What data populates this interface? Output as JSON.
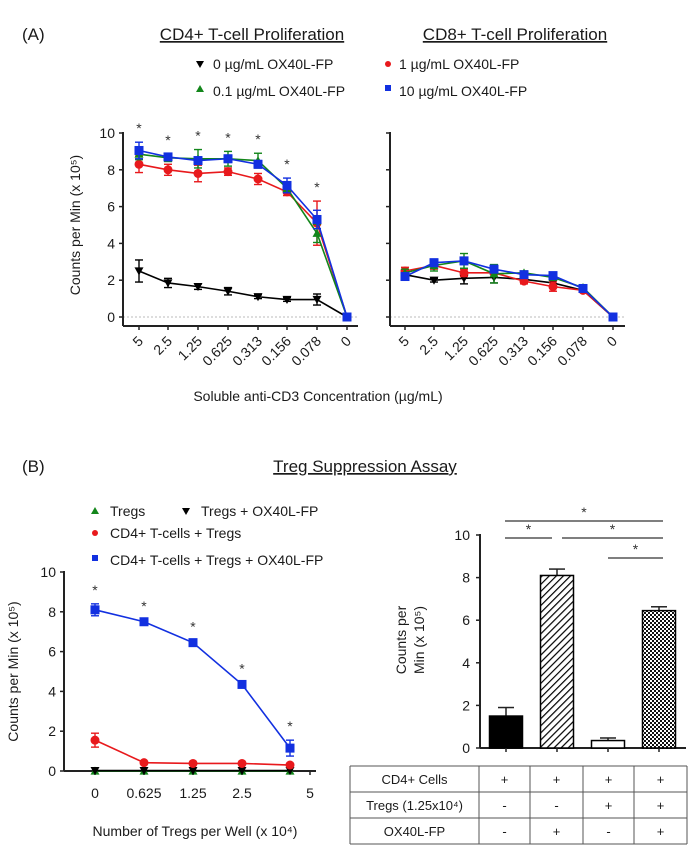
{
  "panel_a": {
    "label": "(A)",
    "shared_xlabel": "Soluble anti-CD3 Concentration (µg/mL)",
    "legend": [
      {
        "name": "0 µg/mL OX40L-FP",
        "color": "#000000",
        "marker": "triangle-down"
      },
      {
        "name": "1 µg/mL OX40L-FP",
        "color": "#e8191c",
        "marker": "circle"
      },
      {
        "name": "0.1 µg/mL OX40L-FP",
        "color": "#13861b",
        "marker": "triangle-up"
      },
      {
        "name": "10 µg/mL OX40L-FP",
        "color": "#1230e0",
        "marker": "square"
      }
    ]
  },
  "panel_b": {
    "label": "(B)",
    "title": "Treg Suppression Assay",
    "legend": [
      {
        "name": "Tregs",
        "color": "#13861b",
        "marker": "triangle-up"
      },
      {
        "name": "Tregs + OX40L-FP",
        "color": "#000000",
        "marker": "triangle-down"
      },
      {
        "name": "CD4+ T-cells + Tregs",
        "color": "#e8191c",
        "marker": "circle"
      },
      {
        "name": "CD4+ T-cells + Tregs + OX40L-FP",
        "color": "#1230e0",
        "marker": "square"
      }
    ],
    "table": {
      "rows": [
        {
          "label": "CD4+ Cells",
          "values": [
            "+",
            "+",
            "+",
            "+"
          ]
        },
        {
          "label": "Tregs (1.25x10⁴)",
          "values": [
            "-",
            "-",
            "+",
            "+"
          ]
        },
        {
          "label": "OX40L-FP",
          "values": [
            "-",
            "+",
            "-",
            "+"
          ]
        }
      ]
    }
  },
  "chart_data": [
    {
      "type": "line",
      "title": "CD4+ T-cell Proliferation",
      "xlabel": "Soluble anti-CD3 Concentration (µg/mL)",
      "ylabel": "Counts per Min (x 10⁵)",
      "categories": [
        "5",
        "2.5",
        "1.25",
        "0.625",
        "0.313",
        "0.156",
        "0.078",
        "0"
      ],
      "ylim": [
        0,
        10
      ],
      "yticks": [
        0,
        2,
        4,
        6,
        8,
        10
      ],
      "significance": [
        "*",
        "*",
        "*",
        "*",
        "*",
        "*",
        "*",
        ""
      ],
      "series": [
        {
          "name": "0 µg/mL OX40L-FP",
          "color": "#000000",
          "marker": "triangle-down",
          "values": [
            2.5,
            1.85,
            1.65,
            1.4,
            1.1,
            0.95,
            0.95,
            0
          ],
          "errors": [
            0.6,
            0.25,
            0.15,
            0.2,
            0.1,
            0.1,
            0.3,
            0
          ]
        },
        {
          "name": "1 µg/mL OX40L-FP",
          "color": "#e8191c",
          "marker": "circle",
          "values": [
            8.3,
            8.0,
            7.8,
            7.9,
            7.5,
            6.8,
            5.1,
            0
          ],
          "errors": [
            0.45,
            0.3,
            0.45,
            0.2,
            0.3,
            0.2,
            1.2,
            0
          ]
        },
        {
          "name": "0.1 µg/mL OX40L-FP",
          "color": "#13861b",
          "marker": "triangle-up",
          "values": [
            8.85,
            8.65,
            8.6,
            8.6,
            8.5,
            7.0,
            4.55,
            0
          ],
          "errors": [
            0.3,
            0.2,
            0.5,
            0.4,
            0.4,
            0.2,
            0.5,
            0
          ]
        },
        {
          "name": "10 µg/mL OX40L-FP",
          "color": "#1230e0",
          "marker": "square",
          "values": [
            9.05,
            8.7,
            8.5,
            8.6,
            8.3,
            7.15,
            5.3,
            0
          ],
          "errors": [
            0.45,
            0.15,
            0.2,
            0.2,
            0.2,
            0.4,
            0.5,
            0
          ]
        }
      ]
    },
    {
      "type": "line",
      "title": "CD8+ T-cell Proliferation",
      "xlabel": "Soluble anti-CD3 Concentration (µg/mL)",
      "ylabel": "",
      "categories": [
        "5",
        "2.5",
        "1.25",
        "0.625",
        "0.313",
        "0.156",
        "0.078",
        "0"
      ],
      "ylim": [
        0,
        10
      ],
      "yticks": [
        0,
        2,
        4,
        6,
        8,
        10
      ],
      "series": [
        {
          "name": "0 µg/mL OX40L-FP",
          "color": "#000000",
          "marker": "triangle-down",
          "values": [
            2.3,
            2.0,
            2.1,
            2.15,
            2.05,
            1.85,
            1.45,
            0
          ],
          "errors": [
            0.1,
            0.1,
            0.3,
            0.3,
            0.1,
            0.2,
            0.1,
            0
          ]
        },
        {
          "name": "1 µg/mL OX40L-FP",
          "color": "#e8191c",
          "marker": "circle",
          "values": [
            2.5,
            2.8,
            2.4,
            2.4,
            1.95,
            1.65,
            1.45,
            0
          ],
          "errors": [
            0.2,
            0.2,
            0.2,
            0.1,
            0.15,
            0.25,
            0.1,
            0
          ]
        },
        {
          "name": "0.1 µg/mL OX40L-FP",
          "color": "#13861b",
          "marker": "triangle-up",
          "values": [
            2.4,
            2.8,
            3.05,
            2.35,
            2.4,
            2.15,
            1.6,
            0
          ],
          "errors": [
            0.2,
            0.3,
            0.4,
            0.5,
            0.1,
            0.1,
            0.1,
            0
          ]
        },
        {
          "name": "10 µg/mL OX40L-FP",
          "color": "#1230e0",
          "marker": "square",
          "values": [
            2.2,
            2.95,
            3.05,
            2.6,
            2.3,
            2.25,
            1.55,
            0
          ],
          "errors": [
            0.1,
            0.2,
            0.2,
            0.2,
            0.1,
            0.1,
            0.1,
            0
          ]
        }
      ]
    },
    {
      "type": "line",
      "title": "Treg Suppression Assay",
      "xlabel": "Number of Tregs per Well (x 10⁴)",
      "ylabel": "Counts per Min (x 10⁵)",
      "categories": [
        "0",
        "0.625",
        "1.25",
        "2.5",
        "5"
      ],
      "ylim": [
        0,
        10
      ],
      "yticks": [
        0,
        2,
        4,
        6,
        8,
        10
      ],
      "significance": [
        "*",
        "*",
        "*",
        "*",
        "*"
      ],
      "series": [
        {
          "name": "Tregs",
          "color": "#13861b",
          "marker": "triangle-up",
          "values": [
            0,
            0,
            0,
            0,
            0
          ],
          "errors": [
            0,
            0,
            0,
            0,
            0
          ]
        },
        {
          "name": "Tregs + OX40L-FP",
          "color": "#000000",
          "marker": "triangle-down",
          "values": [
            0.02,
            0.02,
            0.02,
            0.02,
            0.02
          ],
          "errors": [
            0,
            0,
            0,
            0,
            0
          ]
        },
        {
          "name": "CD4+ T-cells + Tregs",
          "color": "#e8191c",
          "marker": "circle",
          "values": [
            1.55,
            0.42,
            0.38,
            0.38,
            0.3
          ],
          "errors": [
            0.35,
            0.05,
            0.05,
            0.05,
            0.05
          ]
        },
        {
          "name": "CD4+ T-cells + Tregs + OX40L-FP",
          "color": "#1230e0",
          "marker": "square",
          "values": [
            8.1,
            7.5,
            6.45,
            4.35,
            1.15
          ],
          "errors": [
            0.3,
            0.1,
            0.1,
            0.1,
            0.4
          ]
        }
      ]
    },
    {
      "type": "bar",
      "title": "",
      "xlabel": "",
      "ylabel": "Counts per Min (x 10⁵)",
      "categories": [
        "CD4+",
        "CD4+ + OX40L-FP",
        "CD4+ + Tregs",
        "CD4+ + Tregs + OX40L-FP"
      ],
      "values": [
        1.5,
        8.1,
        0.35,
        6.45
      ],
      "errors": [
        0.4,
        0.3,
        0.12,
        0.18
      ],
      "fills": [
        "solid-black",
        "diagonal-hatch",
        "white",
        "checker"
      ],
      "ylim": [
        0,
        10
      ],
      "yticks": [
        0,
        2,
        4,
        6,
        8,
        10
      ],
      "significance_brackets": [
        {
          "from": 0,
          "to": 3,
          "label": "*"
        },
        {
          "from": 0,
          "to": 1,
          "label": "*"
        },
        {
          "from": 1,
          "to": 3,
          "label": "*"
        },
        {
          "from": 2,
          "to": 3,
          "label": "*"
        }
      ]
    }
  ]
}
